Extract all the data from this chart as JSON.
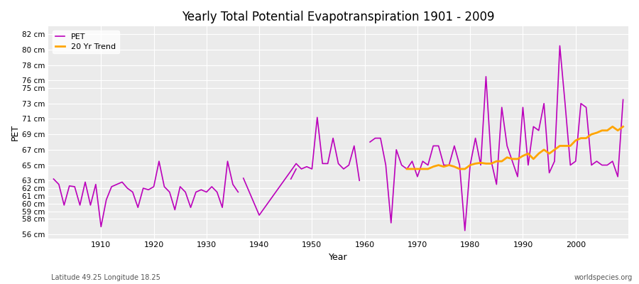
{
  "title": "Yearly Total Potential Evapotranspiration 1901 - 2009",
  "xlabel": "Year",
  "ylabel": "PET",
  "subtitle": "Latitude 49.25 Longitude 18.25",
  "watermark": "worldspecies.org",
  "pet_color": "#bb00bb",
  "trend_color": "#ffa500",
  "background_color": "#ebebeb",
  "ylim_min": 55.5,
  "ylim_max": 83,
  "ytick_positions": [
    56,
    58,
    59,
    60,
    61,
    62,
    63,
    65,
    67,
    69,
    71,
    73,
    75,
    76,
    78,
    80,
    82
  ],
  "ytick_labels": [
    "56 cm",
    "58 cm",
    "59 cm",
    "60 cm",
    "61 cm",
    "62 cm",
    "63 cm",
    "65 cm",
    "67 cm",
    "69 cm",
    "71 cm",
    "73 cm",
    "75 cm",
    "76 cm",
    "78 cm",
    "80 cm",
    "82 cm"
  ],
  "xtick_positions": [
    1910,
    1920,
    1930,
    1940,
    1950,
    1960,
    1970,
    1980,
    1990,
    2000
  ],
  "xlim_min": 1900,
  "xlim_max": 2010,
  "years": [
    1901,
    1902,
    1903,
    1904,
    1905,
    1906,
    1907,
    1908,
    1909,
    1910,
    1911,
    1912,
    1913,
    1914,
    1915,
    1916,
    1917,
    1918,
    1919,
    1920,
    1921,
    1922,
    1923,
    1924,
    1925,
    1926,
    1927,
    1928,
    1929,
    1930,
    1931,
    1932,
    1933,
    1934,
    1935,
    1936,
    1937,
    1938,
    1939,
    1940,
    1941,
    1942,
    1943,
    1944,
    1945,
    1946,
    1947,
    1948,
    1949,
    1950,
    1951,
    1952,
    1953,
    1954,
    1955,
    1956,
    1957,
    1958,
    1959,
    1960,
    1961,
    1962,
    1963,
    1964,
    1965,
    1966,
    1967,
    1968,
    1969,
    1970,
    1971,
    1972,
    1973,
    1974,
    1975,
    1976,
    1977,
    1978,
    1979,
    1980,
    1981,
    1982,
    1983,
    1984,
    1985,
    1986,
    1987,
    1988,
    1989,
    1990,
    1991,
    1992,
    1993,
    1994,
    1995,
    1996,
    1997,
    1998,
    1999,
    2000,
    2001,
    2002,
    2003,
    2004,
    2005,
    2006,
    2007,
    2008,
    2009
  ],
  "pet_values": [
    63.2,
    62.5,
    59.8,
    62.3,
    62.2,
    59.8,
    62.8,
    59.8,
    62.5,
    57.0,
    60.5,
    62.2,
    62.5,
    62.8,
    62.0,
    61.5,
    59.5,
    62.0,
    61.8,
    62.2,
    65.5,
    62.2,
    61.5,
    59.2,
    62.2,
    61.5,
    59.5,
    61.5,
    61.8,
    61.5,
    62.2,
    61.5,
    59.5,
    65.5,
    62.5,
    61.5,
    null,
    null,
    null,
    null,
    null,
    null,
    null,
    null,
    null,
    63.2,
    64.5,
    null,
    null,
    null,
    null,
    null,
    null,
    null,
    null,
    null,
    null,
    null,
    null,
    null,
    68.0,
    68.5,
    68.5,
    65.0,
    57.5,
    67.0,
    65.0,
    64.5,
    65.5,
    63.5,
    65.5,
    65.0,
    67.5,
    67.5,
    65.0,
    65.0,
    67.5,
    65.0,
    56.5,
    65.0,
    68.5,
    65.0,
    76.5,
    65.5,
    62.5,
    72.5,
    67.5,
    65.5,
    63.5,
    72.5,
    65.0,
    70.0,
    69.5,
    73.0,
    64.0,
    65.5,
    80.5,
    73.0,
    65.0,
    65.5,
    73.0,
    72.5,
    65.0,
    65.5,
    65.0,
    65.0,
    65.5,
    63.5,
    73.5
  ],
  "pet_isolated": [
    [
      1937,
      63.3
    ],
    [
      1940,
      58.5
    ],
    [
      1947,
      65.2
    ],
    [
      1948,
      64.5
    ],
    [
      1949,
      64.8
    ],
    [
      1950,
      64.5
    ],
    [
      1951,
      71.2
    ],
    [
      1952,
      65.2
    ],
    [
      1953,
      65.2
    ],
    [
      1954,
      68.5
    ],
    [
      1955,
      65.2
    ],
    [
      1956,
      64.5
    ],
    [
      1957,
      65.0
    ],
    [
      1958,
      67.5
    ],
    [
      1959,
      63.0
    ]
  ],
  "trend_years": [
    1968,
    1969,
    1970,
    1971,
    1972,
    1973,
    1974,
    1975,
    1976,
    1977,
    1978,
    1979,
    1980,
    1981,
    1982,
    1983,
    1984,
    1985,
    1986,
    1987,
    1988,
    1989,
    1990,
    1991,
    1992,
    1993,
    1994,
    1995,
    1996,
    1997,
    1998,
    1999,
    2000,
    2001,
    2002,
    2003,
    2004,
    2005,
    2006,
    2007,
    2008,
    2009
  ],
  "trend_values": [
    64.5,
    64.5,
    64.5,
    64.5,
    64.5,
    64.8,
    65.0,
    64.8,
    65.0,
    64.8,
    64.5,
    64.5,
    65.0,
    65.2,
    65.3,
    65.2,
    65.2,
    65.5,
    65.5,
    66.0,
    65.8,
    65.8,
    66.2,
    66.5,
    65.8,
    66.5,
    67.0,
    66.5,
    67.0,
    67.5,
    67.5,
    67.5,
    68.2,
    68.5,
    68.5,
    69.0,
    69.2,
    69.5,
    69.5,
    70.0,
    69.5,
    70.0
  ]
}
